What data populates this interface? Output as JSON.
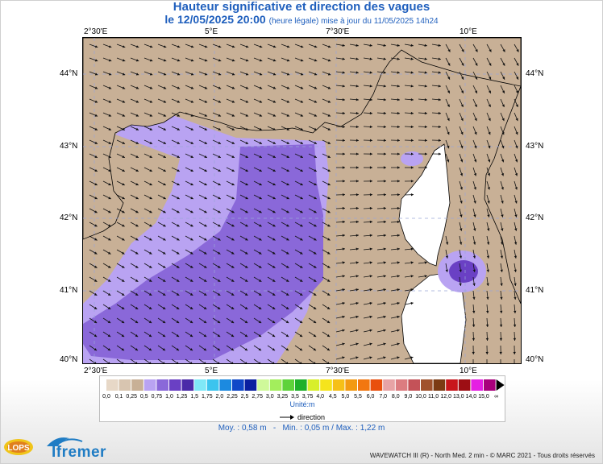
{
  "header": {
    "title": "Hauteur significative et direction des vagues",
    "date_bold": "le 12/05/2025 20:00",
    "date_note": "(heure légale) mise à jour du 11/05/2025 14h24"
  },
  "axes": {
    "lon_labels": [
      "2°30'E",
      "5°E",
      "7°30'E",
      "10°E"
    ],
    "lat_labels": [
      "44°N",
      "43°N",
      "42°N",
      "41°N",
      "40°N"
    ]
  },
  "map_colors": {
    "land": "#ffffff",
    "sea_0_5": "#c8b096",
    "sea_0_75": "#b9a3f2",
    "sea_1_0": "#8a68d9",
    "sea_1_25": "#6a40c4",
    "sea_1_5": "#4a2aa8",
    "arrow": "#111111"
  },
  "legend": {
    "labels": [
      "0,0",
      "0,1",
      "0,25",
      "0,5",
      "0,75",
      "1,0",
      "1,25",
      "1,5",
      "1,75",
      "2,0",
      "2,25",
      "2,5",
      "2,75",
      "3,0",
      "3,25",
      "3,5",
      "3,75",
      "4,0",
      "4,5",
      "5,0",
      "5,5",
      "6,0",
      "7,0",
      "8,0",
      "9,0",
      "10,0",
      "11,0",
      "12,0",
      "13,0",
      "14,0",
      "15,0",
      "∞"
    ],
    "colors": [
      "#e7d8c7",
      "#d8c5b0",
      "#c8b096",
      "#b9a3f2",
      "#8a68d9",
      "#6a40c4",
      "#4a2aa8",
      "#7fe8f7",
      "#3cc4ee",
      "#1c8ae0",
      "#1048c8",
      "#0a1fa0",
      "#cff99a",
      "#a3ee5c",
      "#5ed23a",
      "#1fb02a",
      "#d8ef2a",
      "#f5e41c",
      "#f6c017",
      "#f39a12",
      "#f27710",
      "#e94f0d",
      "#e7a3a5",
      "#dc7c80",
      "#c45258",
      "#a0522d",
      "#7c3b14",
      "#c8161c",
      "#9d0e14",
      "#e51fe3",
      "#a8007b"
    ],
    "unit": "Unité:m",
    "arrow_label": "direction"
  },
  "stats": {
    "moy": "Moy. : 0,58 m",
    "min": "Min. : 0,05 m",
    "max": "Max. : 1,22 m"
  },
  "footer": {
    "credit": "WAVEWATCH III (R) - North Med. 2 min - © MARC 2021 - Tous droits réservés",
    "logo_left": "LOPS",
    "logo_right": "Ifremer"
  },
  "map_data": {
    "lon_range": [
      2.25,
      11.1
    ],
    "lat_range": [
      39.95,
      44.45
    ],
    "wave_heights_m": {
      "mean": 0.58,
      "min": 0.05,
      "max": 1.22
    }
  }
}
